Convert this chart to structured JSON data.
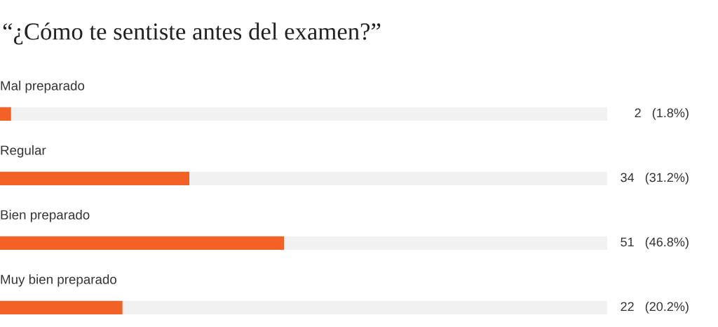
{
  "chart_data": {
    "type": "bar",
    "orientation": "horizontal",
    "stacked": true,
    "title": "“¿Cómo te sentiste antes del examen?”",
    "categories": [
      "Mal preparado",
      "Regular",
      "Bien preparado",
      "Muy bien preparado"
    ],
    "series": [
      {
        "color": "#f26126",
        "values": [
          2,
          34,
          51,
          22
        ],
        "value_labels": [
          "2   (1.8%)",
          "34   (31.2%)",
          "51   (46.8%)",
          "22   (20.2%)"
        ]
      },
      {
        "color": "#f1f1f1",
        "values": [
          107,
          75,
          58,
          87
        ]
      }
    ]
  }
}
